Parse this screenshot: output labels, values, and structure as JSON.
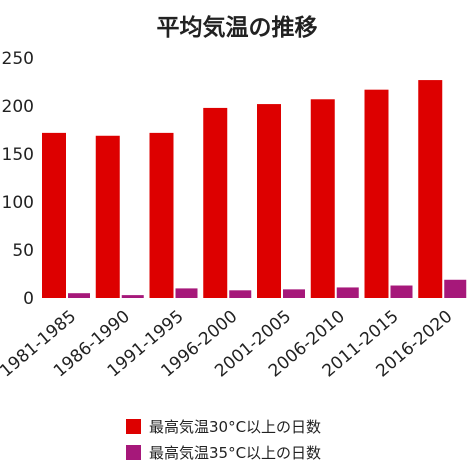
{
  "chart_data": {
    "type": "bar",
    "title": "平均気温の推移",
    "categories": [
      "1981-1985",
      "1986-1990",
      "1991-1995",
      "1996-2000",
      "2001-2005",
      "2006-2010",
      "2011-2015",
      "2016-2020"
    ],
    "series": [
      {
        "name": "最高気温30°C以上の日数",
        "values": [
          172,
          169,
          172,
          198,
          202,
          207,
          217,
          227
        ],
        "color": "#dd0000"
      },
      {
        "name": "最高気温35°C以上の日数",
        "values": [
          5,
          3,
          10,
          8,
          9,
          11,
          13,
          19
        ],
        "color": "#a6187a"
      }
    ],
    "ylim": [
      0,
      250
    ],
    "yticks": [
      0,
      50,
      100,
      150,
      200,
      250
    ],
    "grid": false,
    "legend_position": "bottom"
  }
}
